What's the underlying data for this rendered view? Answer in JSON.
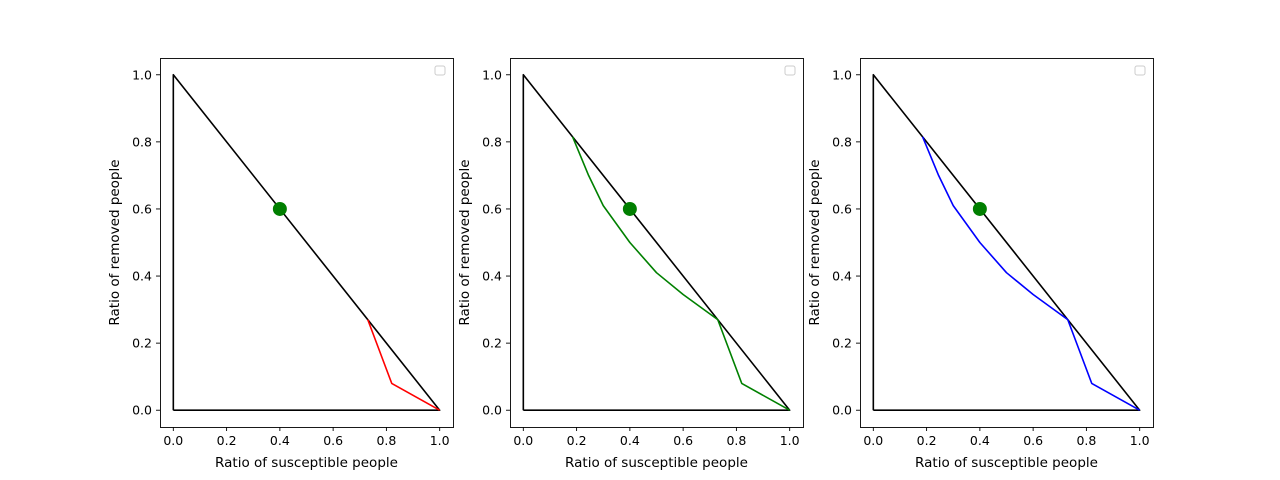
{
  "chart_data": [
    {
      "type": "line",
      "xlabel": "Ratio of susceptible people",
      "ylabel": "Ratio of removed people",
      "xlim": [
        -0.05,
        1.05
      ],
      "ylim": [
        -0.05,
        1.05
      ],
      "xticks": [
        "0.0",
        "0.2",
        "0.4",
        "0.6",
        "0.8",
        "1.0"
      ],
      "yticks": [
        "0.0",
        "0.2",
        "0.4",
        "0.6",
        "0.8",
        "1.0"
      ],
      "grid": false,
      "legend": "top-right (empty)",
      "triangle": {
        "color": "#000000",
        "points": [
          [
            0,
            0
          ],
          [
            1,
            0
          ],
          [
            0,
            1
          ],
          [
            0,
            0
          ]
        ]
      },
      "marker": {
        "x": 0.4,
        "y": 0.6,
        "color": "#007f00"
      },
      "series": [
        {
          "color": "#ff0000",
          "points": [
            [
              1.0,
              0.0
            ],
            [
              0.82,
              0.08
            ],
            [
              0.73,
              0.27
            ]
          ]
        }
      ]
    },
    {
      "type": "line",
      "xlabel": "Ratio of susceptible people",
      "ylabel": "Ratio of removed people",
      "xlim": [
        -0.05,
        1.05
      ],
      "ylim": [
        -0.05,
        1.05
      ],
      "xticks": [
        "0.0",
        "0.2",
        "0.4",
        "0.6",
        "0.8",
        "1.0"
      ],
      "yticks": [
        "0.0",
        "0.2",
        "0.4",
        "0.6",
        "0.8",
        "1.0"
      ],
      "grid": false,
      "legend": "top-right (empty)",
      "triangle": {
        "color": "#000000",
        "points": [
          [
            0,
            0
          ],
          [
            1,
            0
          ],
          [
            0,
            1
          ],
          [
            0,
            0
          ]
        ]
      },
      "marker": {
        "x": 0.4,
        "y": 0.6,
        "color": "#007f00"
      },
      "series": [
        {
          "color": "#008000",
          "points": [
            [
              1.0,
              0.0
            ],
            [
              0.82,
              0.08
            ],
            [
              0.73,
              0.27
            ],
            [
              0.6,
              0.345
            ],
            [
              0.5,
              0.41
            ],
            [
              0.4,
              0.5
            ],
            [
              0.3,
              0.61
            ],
            [
              0.245,
              0.7
            ],
            [
              0.185,
              0.815
            ]
          ]
        }
      ]
    },
    {
      "type": "line",
      "xlabel": "Ratio of susceptible people",
      "ylabel": "Ratio of removed people",
      "xlim": [
        -0.05,
        1.05
      ],
      "ylim": [
        -0.05,
        1.05
      ],
      "xticks": [
        "0.0",
        "0.2",
        "0.4",
        "0.6",
        "0.8",
        "1.0"
      ],
      "yticks": [
        "0.0",
        "0.2",
        "0.4",
        "0.6",
        "0.8",
        "1.0"
      ],
      "grid": false,
      "legend": "top-right (empty)",
      "triangle": {
        "color": "#000000",
        "points": [
          [
            0,
            0
          ],
          [
            1,
            0
          ],
          [
            0,
            1
          ],
          [
            0,
            0
          ]
        ]
      },
      "marker": {
        "x": 0.4,
        "y": 0.6,
        "color": "#007f00"
      },
      "series": [
        {
          "color": "#0000ff",
          "points": [
            [
              1.0,
              0.0
            ],
            [
              0.82,
              0.08
            ],
            [
              0.73,
              0.27
            ],
            [
              0.6,
              0.345
            ],
            [
              0.5,
              0.41
            ],
            [
              0.4,
              0.5
            ],
            [
              0.3,
              0.61
            ],
            [
              0.245,
              0.7
            ],
            [
              0.185,
              0.815
            ]
          ]
        }
      ]
    }
  ]
}
